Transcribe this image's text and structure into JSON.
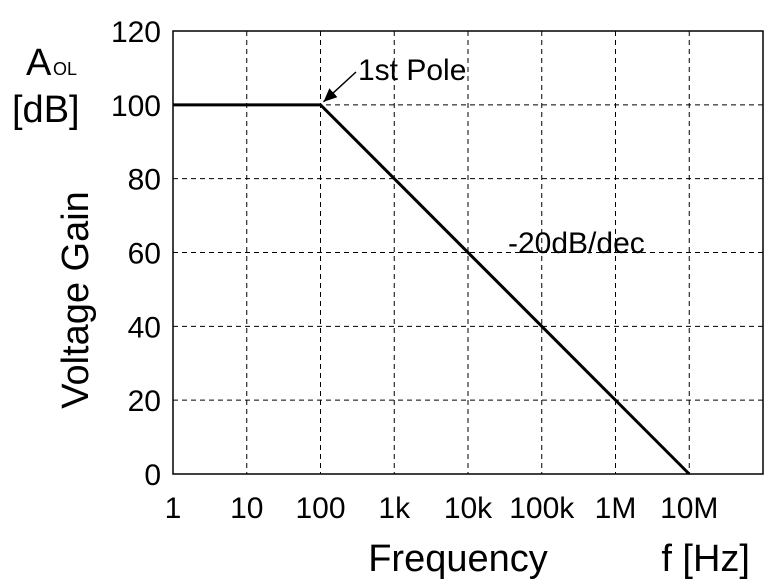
{
  "chart_data": {
    "type": "line",
    "title": "",
    "x_scale": "log",
    "xlabel": "Frequency",
    "xunit": "f [Hz]",
    "ylabel": "Voltage Gain",
    "yunit_symbol": "A",
    "yunit_subscript": "OL",
    "yunit": "[dB]",
    "xlim": [
      1,
      100000000
    ],
    "ylim": [
      0,
      120
    ],
    "grid": true,
    "x_ticks": [
      {
        "value": 1,
        "label": "1"
      },
      {
        "value": 10,
        "label": "10"
      },
      {
        "value": 100,
        "label": "100"
      },
      {
        "value": 1000,
        "label": "1k"
      },
      {
        "value": 10000,
        "label": "10k"
      },
      {
        "value": 100000,
        "label": "100k"
      },
      {
        "value": 1000000,
        "label": "1M"
      },
      {
        "value": 10000000,
        "label": "10M"
      }
    ],
    "y_ticks": [
      {
        "value": 0,
        "label": "0"
      },
      {
        "value": 20,
        "label": "20"
      },
      {
        "value": 40,
        "label": "40"
      },
      {
        "value": 60,
        "label": "60"
      },
      {
        "value": 80,
        "label": "80"
      },
      {
        "value": 100,
        "label": "100"
      },
      {
        "value": 120,
        "label": "120"
      }
    ],
    "series": [
      {
        "color": "#000000",
        "points": [
          {
            "x": 1,
            "y": 100
          },
          {
            "x": 100,
            "y": 100
          },
          {
            "x": 10000000,
            "y": 0
          }
        ]
      }
    ],
    "annotations": [
      {
        "text": "1st Pole",
        "x": 100,
        "y": 100,
        "type": "arrow"
      },
      {
        "text": "-20dB/dec",
        "type": "label"
      }
    ]
  }
}
